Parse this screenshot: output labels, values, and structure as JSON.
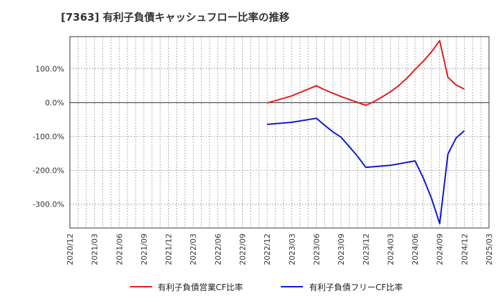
{
  "chart_data": {
    "type": "line",
    "title": "[7363]  有利子負債キャッシュフロー比率の推移",
    "xlabel": "",
    "ylabel": "",
    "x_ticks": [
      "2020/12",
      "2021/03",
      "2021/06",
      "2021/09",
      "2021/12",
      "2022/03",
      "2022/06",
      "2022/09",
      "2022/12",
      "2023/03",
      "2023/06",
      "2023/09",
      "2023/12",
      "2024/03",
      "2024/06",
      "2024/09",
      "2024/12",
      "2025/03"
    ],
    "y_ticks": [
      100,
      0,
      -100,
      -200,
      -300
    ],
    "y_tick_labels": [
      "100.0%",
      "0.0%",
      "-100.0%",
      "-200.0%",
      "-300.0%"
    ],
    "ylim": [
      -370,
      195
    ],
    "grid": true,
    "legend_position": "bottom",
    "series": [
      {
        "name": "有利子負債営業CF比率",
        "color": "#e31a1c",
        "points": [
          {
            "x": "2022/12",
            "y": -1
          },
          {
            "x": "2023/03",
            "y": 20
          },
          {
            "x": "2023/06",
            "y": 50
          },
          {
            "x": "2023/07",
            "y": 38
          },
          {
            "x": "2023/08",
            "y": 28
          },
          {
            "x": "2023/09",
            "y": 18
          },
          {
            "x": "2023/12",
            "y": -8
          },
          {
            "x": "2024/01",
            "y": 3
          },
          {
            "x": "2024/02",
            "y": 17
          },
          {
            "x": "2024/03",
            "y": 32
          },
          {
            "x": "2024/04",
            "y": 50
          },
          {
            "x": "2024/05",
            "y": 72
          },
          {
            "x": "2024/06",
            "y": 98
          },
          {
            "x": "2024/07",
            "y": 122
          },
          {
            "x": "2024/08",
            "y": 150
          },
          {
            "x": "2024/09",
            "y": 183
          },
          {
            "x": "2024/10",
            "y": 75
          },
          {
            "x": "2024/11",
            "y": 52
          },
          {
            "x": "2024/12",
            "y": 40
          }
        ]
      },
      {
        "name": "有利子負債フリーCF比率",
        "color": "#0a14d8",
        "points": [
          {
            "x": "2022/12",
            "y": -64
          },
          {
            "x": "2023/03",
            "y": -58
          },
          {
            "x": "2023/06",
            "y": -46
          },
          {
            "x": "2023/07",
            "y": -67
          },
          {
            "x": "2023/08",
            "y": -86
          },
          {
            "x": "2023/09",
            "y": -102
          },
          {
            "x": "2023/10",
            "y": -130
          },
          {
            "x": "2023/11",
            "y": -158
          },
          {
            "x": "2023/12",
            "y": -191
          },
          {
            "x": "2024/03",
            "y": -185
          },
          {
            "x": "2024/06",
            "y": -172
          },
          {
            "x": "2024/07",
            "y": -222
          },
          {
            "x": "2024/08",
            "y": -282
          },
          {
            "x": "2024/09",
            "y": -357
          },
          {
            "x": "2024/10",
            "y": -152
          },
          {
            "x": "2024/11",
            "y": -104
          },
          {
            "x": "2024/12",
            "y": -83
          }
        ]
      }
    ]
  }
}
